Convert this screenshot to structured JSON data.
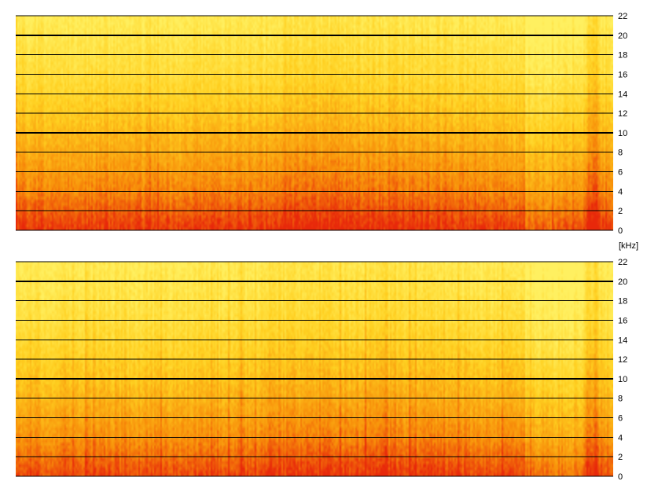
{
  "chart_data": [
    {
      "type": "heatmap",
      "title": "",
      "xlabel": "",
      "ylabel": "",
      "ylim": [
        0,
        22
      ],
      "y_unit": "[kHz]",
      "y_ticks": [
        0,
        2,
        4,
        6,
        8,
        10,
        12,
        14,
        16,
        18,
        20,
        22
      ],
      "major_gridlines": [
        10,
        20
      ],
      "grid": true,
      "colormap": [
        "#e8280a",
        "#f8900a",
        "#ffd020",
        "#fff060"
      ],
      "intensity_profile_by_frequency": {
        "y": [
          0,
          4,
          10,
          16,
          22
        ],
        "level": [
          0.05,
          0.3,
          0.55,
          0.8,
          0.95
        ]
      }
    },
    {
      "type": "heatmap",
      "title": "",
      "xlabel": "",
      "ylabel": "",
      "ylim": [
        0,
        22
      ],
      "y_unit": "[kHz]",
      "y_ticks": [
        0,
        2,
        4,
        6,
        8,
        10,
        12,
        14,
        16,
        18,
        20,
        22
      ],
      "major_gridlines": [
        10,
        20
      ],
      "grid": true,
      "colormap": [
        "#e8280a",
        "#f8900a",
        "#ffd020",
        "#fff060"
      ],
      "intensity_profile_by_frequency": {
        "y": [
          0,
          4,
          10,
          16,
          22
        ],
        "level": [
          0.1,
          0.35,
          0.6,
          0.82,
          0.95
        ]
      }
    }
  ]
}
